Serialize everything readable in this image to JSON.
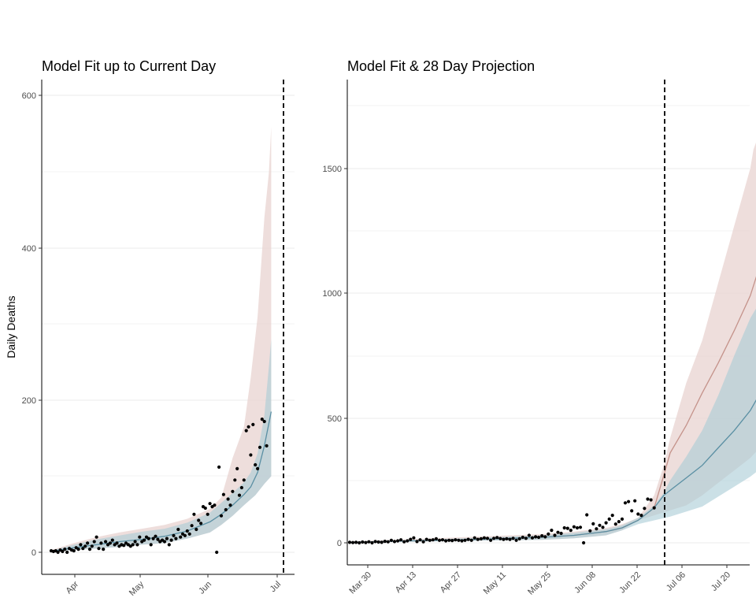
{
  "chart_data": [
    {
      "type": "area",
      "title": "Model Fit up to Current Day",
      "ylabel": "Daily Deaths",
      "xlabel": "",
      "x_ticks": [
        "Apr",
        "May",
        "Jun",
        "Jul"
      ],
      "y_ticks": [
        "0",
        "200",
        "400",
        "600"
      ],
      "ylim": [
        -30,
        625
      ],
      "grid": "horizontal",
      "current_day_line": "Jul 02",
      "colors": {
        "reported_band": "#e8d3d0",
        "fitted_band": "#a9cbd6",
        "fitted_line": "#5a8fa3",
        "points": "#000000",
        "vline": "#000000"
      },
      "band_upper": [
        [
          0,
          3
        ],
        [
          10,
          12
        ],
        [
          20,
          20
        ],
        [
          30,
          26
        ],
        [
          40,
          31
        ],
        [
          50,
          36
        ],
        [
          60,
          44
        ],
        [
          70,
          57
        ],
        [
          75,
          72
        ],
        [
          80,
          124
        ],
        [
          85,
          165
        ],
        [
          88,
          230
        ],
        [
          91,
          310
        ],
        [
          94,
          440
        ],
        [
          96,
          500
        ],
        [
          97,
          560
        ]
      ],
      "band_lower": [
        [
          0,
          1
        ],
        [
          10,
          3
        ],
        [
          20,
          5
        ],
        [
          30,
          7
        ],
        [
          40,
          10
        ],
        [
          50,
          12
        ],
        [
          60,
          18
        ],
        [
          70,
          26
        ],
        [
          75,
          36
        ],
        [
          80,
          48
        ],
        [
          85,
          62
        ],
        [
          90,
          75
        ],
        [
          94,
          90
        ],
        [
          97,
          100
        ]
      ],
      "fit_upper": [
        [
          0,
          2
        ],
        [
          10,
          10
        ],
        [
          20,
          17
        ],
        [
          30,
          22
        ],
        [
          40,
          27
        ],
        [
          50,
          31
        ],
        [
          60,
          39
        ],
        [
          70,
          52
        ],
        [
          75,
          65
        ],
        [
          80,
          78
        ],
        [
          85,
          92
        ],
        [
          88,
          105
        ],
        [
          91,
          130
        ],
        [
          94,
          180
        ],
        [
          96,
          245
        ],
        [
          97,
          280
        ]
      ],
      "fit_lower": [
        [
          0,
          1
        ],
        [
          10,
          3
        ],
        [
          20,
          5
        ],
        [
          30,
          7
        ],
        [
          40,
          10
        ],
        [
          50,
          12
        ],
        [
          60,
          18
        ],
        [
          70,
          26
        ],
        [
          75,
          36
        ],
        [
          80,
          48
        ],
        [
          85,
          62
        ],
        [
          90,
          75
        ],
        [
          94,
          90
        ],
        [
          97,
          100
        ]
      ],
      "fit_line": [
        [
          0,
          1
        ],
        [
          10,
          6
        ],
        [
          20,
          10
        ],
        [
          30,
          14
        ],
        [
          40,
          17
        ],
        [
          50,
          21
        ],
        [
          60,
          28
        ],
        [
          70,
          40
        ],
        [
          75,
          50
        ],
        [
          80,
          62
        ],
        [
          85,
          76
        ],
        [
          88,
          86
        ],
        [
          91,
          105
        ],
        [
          94,
          140
        ],
        [
          96,
          170
        ],
        [
          97,
          185
        ]
      ],
      "points": [
        [
          0,
          2
        ],
        [
          1,
          1
        ],
        [
          2,
          2
        ],
        [
          3,
          0
        ],
        [
          4,
          3
        ],
        [
          5,
          1
        ],
        [
          6,
          4
        ],
        [
          7,
          0
        ],
        [
          8,
          5
        ],
        [
          9,
          3
        ],
        [
          10,
          2
        ],
        [
          11,
          6
        ],
        [
          12,
          4
        ],
        [
          13,
          10
        ],
        [
          14,
          5
        ],
        [
          15,
          8
        ],
        [
          16,
          12
        ],
        [
          17,
          4
        ],
        [
          18,
          8
        ],
        [
          19,
          14
        ],
        [
          20,
          20
        ],
        [
          21,
          5
        ],
        [
          22,
          12
        ],
        [
          23,
          4
        ],
        [
          24,
          14
        ],
        [
          25,
          10
        ],
        [
          26,
          12
        ],
        [
          27,
          16
        ],
        [
          28,
          10
        ],
        [
          29,
          12
        ],
        [
          30,
          8
        ],
        [
          31,
          10
        ],
        [
          32,
          9
        ],
        [
          33,
          12
        ],
        [
          34,
          10
        ],
        [
          35,
          8
        ],
        [
          36,
          10
        ],
        [
          37,
          14
        ],
        [
          38,
          10
        ],
        [
          39,
          20
        ],
        [
          40,
          14
        ],
        [
          41,
          16
        ],
        [
          42,
          20
        ],
        [
          43,
          18
        ],
        [
          44,
          10
        ],
        [
          45,
          18
        ],
        [
          46,
          21
        ],
        [
          47,
          17
        ],
        [
          48,
          14
        ],
        [
          49,
          16
        ],
        [
          50,
          14
        ],
        [
          51,
          18
        ],
        [
          52,
          10
        ],
        [
          53,
          16
        ],
        [
          54,
          22
        ],
        [
          55,
          18
        ],
        [
          56,
          30
        ],
        [
          57,
          20
        ],
        [
          58,
          24
        ],
        [
          59,
          22
        ],
        [
          60,
          28
        ],
        [
          61,
          24
        ],
        [
          62,
          35
        ],
        [
          63,
          50
        ],
        [
          64,
          30
        ],
        [
          65,
          42
        ],
        [
          66,
          38
        ],
        [
          67,
          60
        ],
        [
          68,
          58
        ],
        [
          69,
          50
        ],
        [
          70,
          64
        ],
        [
          71,
          60
        ],
        [
          72,
          62
        ],
        [
          73,
          0
        ],
        [
          74,
          112
        ],
        [
          75,
          48
        ],
        [
          76,
          76
        ],
        [
          77,
          56
        ],
        [
          78,
          70
        ],
        [
          79,
          62
        ],
        [
          80,
          80
        ],
        [
          81,
          95
        ],
        [
          82,
          110
        ],
        [
          83,
          75
        ],
        [
          84,
          85
        ],
        [
          85,
          95
        ],
        [
          86,
          160
        ],
        [
          87,
          165
        ],
        [
          88,
          128
        ],
        [
          89,
          168
        ],
        [
          90,
          115
        ],
        [
          91,
          110
        ],
        [
          92,
          138
        ],
        [
          93,
          175
        ],
        [
          94,
          172
        ],
        [
          95,
          140
        ]
      ]
    },
    {
      "type": "area",
      "title": "Model Fit & 28 Day Projection",
      "ylabel": "",
      "xlabel": "",
      "x_ticks": [
        "Mar 30",
        "Apr 13",
        "Apr 27",
        "May 11",
        "May 25",
        "Jun 08",
        "Jun 22",
        "Jul 06",
        "Jul 20"
      ],
      "y_ticks": [
        "0",
        "500",
        "1000",
        "1500"
      ],
      "ylim": [
        -85,
        1850
      ],
      "grid": "horizontal",
      "current_day_line": "Jul 04",
      "colors": {
        "reported_band": "#e8d3d0",
        "fitted_band": "#a9cbd6",
        "reported_line": "#c4928a",
        "fitted_line": "#5a8fa3",
        "points": "#000000",
        "vline": "#000000"
      },
      "band_upper": [
        [
          0,
          5
        ],
        [
          20,
          15
        ],
        [
          40,
          25
        ],
        [
          60,
          35
        ],
        [
          70,
          45
        ],
        [
          80,
          60
        ],
        [
          85,
          75
        ],
        [
          90,
          100
        ],
        [
          95,
          190
        ],
        [
          98,
          310
        ],
        [
          100,
          420
        ],
        [
          105,
          640
        ],
        [
          110,
          810
        ],
        [
          115,
          1040
        ],
        [
          120,
          1270
        ],
        [
          125,
          1500
        ],
        [
          126,
          1575
        ],
        [
          127,
          1610
        ],
        [
          128,
          1740
        ],
        [
          129,
          1740
        ]
      ],
      "band_lower": [
        [
          0,
          0
        ],
        [
          20,
          5
        ],
        [
          40,
          8
        ],
        [
          60,
          12
        ],
        [
          70,
          18
        ],
        [
          80,
          30
        ],
        [
          85,
          50
        ],
        [
          90,
          90
        ],
        [
          95,
          110
        ],
        [
          100,
          130
        ],
        [
          105,
          150
        ],
        [
          110,
          190
        ],
        [
          115,
          240
        ],
        [
          120,
          290
        ],
        [
          125,
          340
        ],
        [
          129,
          395
        ]
      ],
      "fit_upper": [
        [
          0,
          3
        ],
        [
          20,
          12
        ],
        [
          40,
          20
        ],
        [
          60,
          30
        ],
        [
          70,
          40
        ],
        [
          80,
          55
        ],
        [
          85,
          70
        ],
        [
          90,
          100
        ],
        [
          95,
          150
        ],
        [
          98,
          200
        ],
        [
          100,
          250
        ],
        [
          105,
          345
        ],
        [
          110,
          450
        ],
        [
          115,
          590
        ],
        [
          120,
          750
        ],
        [
          125,
          900
        ],
        [
          129,
          985
        ]
      ],
      "fit_lower": [
        [
          0,
          0
        ],
        [
          20,
          5
        ],
        [
          40,
          8
        ],
        [
          60,
          12
        ],
        [
          70,
          18
        ],
        [
          80,
          30
        ],
        [
          85,
          50
        ],
        [
          90,
          75
        ],
        [
          95,
          90
        ],
        [
          100,
          105
        ],
        [
          105,
          125
        ],
        [
          110,
          145
        ],
        [
          115,
          185
        ],
        [
          120,
          225
        ],
        [
          125,
          265
        ],
        [
          129,
          305
        ]
      ],
      "reported_line": [
        [
          0,
          2
        ],
        [
          20,
          8
        ],
        [
          40,
          14
        ],
        [
          60,
          22
        ],
        [
          70,
          30
        ],
        [
          80,
          45
        ],
        [
          85,
          60
        ],
        [
          90,
          90
        ],
        [
          95,
          140
        ],
        [
          98,
          270
        ],
        [
          100,
          360
        ],
        [
          105,
          470
        ],
        [
          110,
          600
        ],
        [
          115,
          720
        ],
        [
          120,
          850
        ],
        [
          125,
          990
        ],
        [
          129,
          1150
        ]
      ],
      "fit_line": [
        [
          0,
          2
        ],
        [
          20,
          8
        ],
        [
          40,
          14
        ],
        [
          60,
          22
        ],
        [
          70,
          30
        ],
        [
          80,
          45
        ],
        [
          85,
          60
        ],
        [
          90,
          90
        ],
        [
          95,
          140
        ],
        [
          98,
          190
        ],
        [
          100,
          210
        ],
        [
          105,
          260
        ],
        [
          110,
          310
        ],
        [
          115,
          380
        ],
        [
          120,
          450
        ],
        [
          125,
          530
        ],
        [
          129,
          620
        ]
      ],
      "points": [
        [
          0,
          2
        ],
        [
          1,
          1
        ],
        [
          2,
          2
        ],
        [
          3,
          0
        ],
        [
          4,
          3
        ],
        [
          5,
          1
        ],
        [
          6,
          4
        ],
        [
          7,
          0
        ],
        [
          8,
          5
        ],
        [
          9,
          3
        ],
        [
          10,
          2
        ],
        [
          11,
          6
        ],
        [
          12,
          4
        ],
        [
          13,
          10
        ],
        [
          14,
          5
        ],
        [
          15,
          8
        ],
        [
          16,
          12
        ],
        [
          17,
          4
        ],
        [
          18,
          8
        ],
        [
          19,
          14
        ],
        [
          20,
          20
        ],
        [
          21,
          5
        ],
        [
          22,
          12
        ],
        [
          23,
          4
        ],
        [
          24,
          14
        ],
        [
          25,
          10
        ],
        [
          26,
          12
        ],
        [
          27,
          16
        ],
        [
          28,
          10
        ],
        [
          29,
          12
        ],
        [
          30,
          8
        ],
        [
          31,
          10
        ],
        [
          32,
          9
        ],
        [
          33,
          12
        ],
        [
          34,
          10
        ],
        [
          35,
          8
        ],
        [
          36,
          10
        ],
        [
          37,
          14
        ],
        [
          38,
          10
        ],
        [
          39,
          20
        ],
        [
          40,
          14
        ],
        [
          41,
          16
        ],
        [
          42,
          20
        ],
        [
          43,
          18
        ],
        [
          44,
          10
        ],
        [
          45,
          18
        ],
        [
          46,
          21
        ],
        [
          47,
          17
        ],
        [
          48,
          14
        ],
        [
          49,
          16
        ],
        [
          50,
          14
        ],
        [
          51,
          18
        ],
        [
          52,
          10
        ],
        [
          53,
          16
        ],
        [
          54,
          22
        ],
        [
          55,
          18
        ],
        [
          56,
          30
        ],
        [
          57,
          20
        ],
        [
          58,
          24
        ],
        [
          59,
          22
        ],
        [
          60,
          28
        ],
        [
          61,
          24
        ],
        [
          62,
          35
        ],
        [
          63,
          50
        ],
        [
          64,
          30
        ],
        [
          65,
          42
        ],
        [
          66,
          38
        ],
        [
          67,
          60
        ],
        [
          68,
          58
        ],
        [
          69,
          50
        ],
        [
          70,
          64
        ],
        [
          71,
          60
        ],
        [
          72,
          62
        ],
        [
          73,
          0
        ],
        [
          74,
          112
        ],
        [
          75,
          48
        ],
        [
          76,
          76
        ],
        [
          77,
          56
        ],
        [
          78,
          70
        ],
        [
          79,
          62
        ],
        [
          80,
          80
        ],
        [
          81,
          95
        ],
        [
          82,
          110
        ],
        [
          83,
          75
        ],
        [
          84,
          85
        ],
        [
          85,
          95
        ],
        [
          86,
          160
        ],
        [
          87,
          165
        ],
        [
          88,
          128
        ],
        [
          89,
          168
        ],
        [
          90,
          115
        ],
        [
          91,
          110
        ],
        [
          92,
          138
        ],
        [
          93,
          175
        ],
        [
          94,
          172
        ],
        [
          95,
          140
        ]
      ]
    }
  ]
}
